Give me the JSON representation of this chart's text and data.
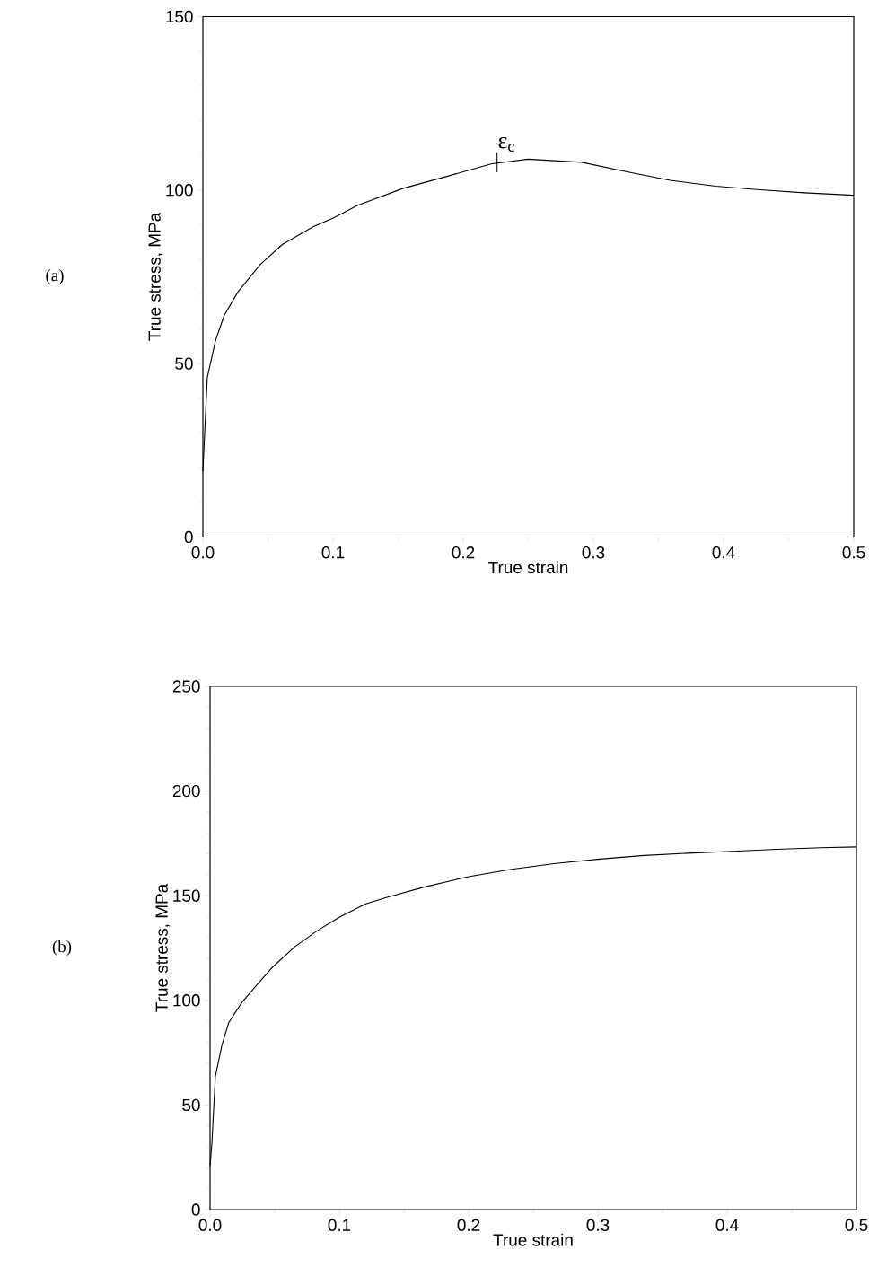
{
  "chart_data": [
    {
      "type": "line",
      "xlabel": "True strain",
      "ylabel": "True stress, MPa",
      "xlim": [
        0,
        0.5
      ],
      "ylim": [
        0,
        150
      ],
      "xticks": [
        {
          "value": 0,
          "label": "0.0"
        },
        0.1,
        0.2,
        0.3,
        0.4,
        0.5
      ],
      "yticks": [
        0,
        50,
        100,
        150
      ],
      "grid": false,
      "series": [
        {
          "color": "#000000",
          "x": [
            0,
            0.0034,
            0.0096,
            0.0165,
            0.027,
            0.044,
            0.061,
            0.085,
            0.1005,
            0.119,
            0.154,
            0.188,
            0.222,
            0.25,
            0.291,
            0.325,
            0.359,
            0.394,
            0.428,
            0.462,
            0.5
          ],
          "values": [
            19,
            46,
            56.5,
            64,
            70.7,
            78.5,
            84.3,
            89.5,
            92,
            95.6,
            100.5,
            104,
            107.6,
            108.9,
            108,
            105.3,
            102.8,
            101.1,
            100.1,
            99.2,
            98.5
          ]
        }
      ],
      "annotations": [
        "(a)",
        {
          "text": "ε$_{c}$",
          "x": 0.226,
          "y": 108
        }
      ]
    },
    {
      "type": "line",
      "xlabel": "True strain",
      "ylabel": "True stress, MPa",
      "xlim": [
        0,
        0.5
      ],
      "ylim": [
        0,
        250
      ],
      "xticks": [
        {
          "value": 0,
          "label": "0.0"
        },
        0.1,
        0.2,
        0.3,
        0.4,
        0.5
      ],
      "yticks": [
        0,
        50,
        100,
        150,
        200,
        250
      ],
      "grid": false,
      "series": [
        {
          "color": "#000000",
          "x": [
            0,
            0.0014,
            0.0041,
            0.0092,
            0.0144,
            0.0246,
            0.035,
            0.0486,
            0.0657,
            0.0828,
            0.0999,
            0.1204,
            0.1375,
            0.1648,
            0.199,
            0.2332,
            0.2674,
            0.3016,
            0.3358,
            0.37,
            0.4042,
            0.4384,
            0.4726,
            0.5
          ],
          "values": [
            20.8,
            31.5,
            63.6,
            78.6,
            89.3,
            99,
            106.5,
            116,
            125.7,
            133.2,
            139.7,
            146.1,
            149.3,
            154,
            159,
            162.6,
            165.4,
            167.5,
            169.2,
            170.3,
            171.2,
            172.2,
            172.9,
            173.3
          ]
        }
      ],
      "annotations": [
        "(b)"
      ]
    }
  ]
}
